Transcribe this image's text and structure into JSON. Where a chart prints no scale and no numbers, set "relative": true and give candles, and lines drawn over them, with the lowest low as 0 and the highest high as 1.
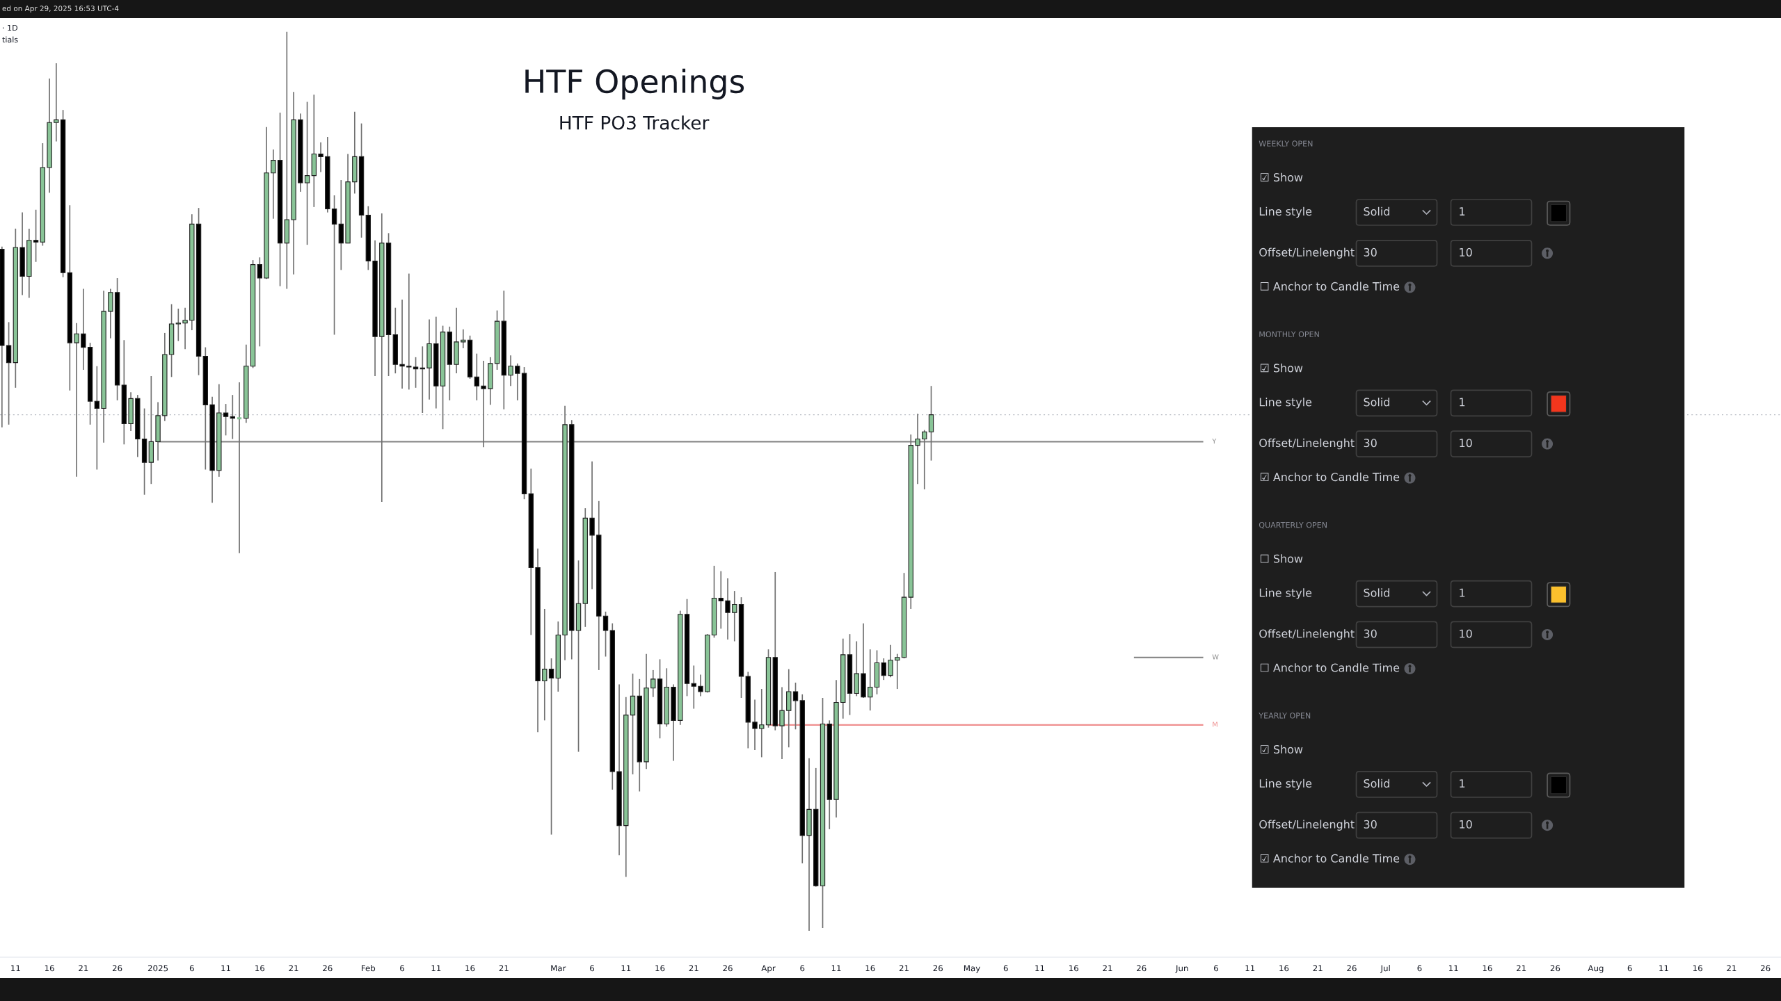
{
  "chart_data": [
    {
      "type": "candlestick",
      "title": "HTF Openings",
      "subtitle": "HTF PO3 Tracker",
      "relative": true,
      "tick_labels": "x",
      "grid": false,
      "annotations": [
        "ed on Apr 29, 2025 16:53 UTC-4",
        "· 1D",
        "tials"
      ],
      "xlim": [
        "2024-12-08T17:00",
        "2025-08-28T07:00"
      ],
      "xticks": [
        {
          "value": "2024-12-11",
          "label": "11"
        },
        {
          "value": "2024-12-16",
          "label": "16"
        },
        {
          "value": "2024-12-21",
          "label": "21"
        },
        {
          "value": "2024-12-26",
          "label": "26"
        },
        {
          "value": "2025-01-01",
          "label": "2025"
        },
        {
          "value": "2025-01-06",
          "label": "6"
        },
        {
          "value": "2025-01-11",
          "label": "11"
        },
        {
          "value": "2025-01-16",
          "label": "16"
        },
        {
          "value": "2025-01-21",
          "label": "21"
        },
        {
          "value": "2025-01-26",
          "label": "26"
        },
        {
          "value": "2025-02-01",
          "label": "Feb"
        },
        {
          "value": "2025-02-06",
          "label": "6"
        },
        {
          "value": "2025-02-11",
          "label": "11"
        },
        {
          "value": "2025-02-16",
          "label": "16"
        },
        {
          "value": "2025-02-21",
          "label": "21"
        },
        {
          "value": "2025-03-01",
          "label": "Mar"
        },
        {
          "value": "2025-03-06",
          "label": "6"
        },
        {
          "value": "2025-03-11",
          "label": "11"
        },
        {
          "value": "2025-03-16",
          "label": "16"
        },
        {
          "value": "2025-03-21",
          "label": "21"
        },
        {
          "value": "2025-03-26",
          "label": "26"
        },
        {
          "value": "2025-04-01",
          "label": "Apr"
        },
        {
          "value": "2025-04-06",
          "label": "6"
        },
        {
          "value": "2025-04-11",
          "label": "11"
        },
        {
          "value": "2025-04-16",
          "label": "16"
        },
        {
          "value": "2025-04-21",
          "label": "21"
        },
        {
          "value": "2025-04-26",
          "label": "26"
        },
        {
          "value": "2025-05-01",
          "label": "May"
        },
        {
          "value": "2025-05-06",
          "label": "6"
        },
        {
          "value": "2025-05-11",
          "label": "11"
        },
        {
          "value": "2025-05-16",
          "label": "16"
        },
        {
          "value": "2025-05-21",
          "label": "21"
        },
        {
          "value": "2025-05-26",
          "label": "26"
        },
        {
          "value": "2025-06-01",
          "label": "Jun"
        },
        {
          "value": "2025-06-06",
          "label": "6"
        },
        {
          "value": "2025-06-11",
          "label": "11"
        },
        {
          "value": "2025-06-16",
          "label": "16"
        },
        {
          "value": "2025-06-21",
          "label": "21"
        },
        {
          "value": "2025-06-26",
          "label": "26"
        },
        {
          "value": "2025-07-01",
          "label": "Jul"
        },
        {
          "value": "2025-07-06",
          "label": "6"
        },
        {
          "value": "2025-07-11",
          "label": "11"
        },
        {
          "value": "2025-07-16",
          "label": "16"
        },
        {
          "value": "2025-07-21",
          "label": "21"
        },
        {
          "value": "2025-07-26",
          "label": "26"
        },
        {
          "value": "2025-08-01",
          "label": "Aug"
        },
        {
          "value": "2025-08-06",
          "label": "6"
        },
        {
          "value": "2025-08-11",
          "label": "11"
        },
        {
          "value": "2025-08-16",
          "label": "16"
        },
        {
          "value": "2025-08-21",
          "label": "21"
        },
        {
          "value": "2025-08-26",
          "label": "26"
        }
      ],
      "x": [
        "2024-12-09",
        "2024-12-10",
        "2024-12-11",
        "2024-12-12",
        "2024-12-13",
        "2024-12-14",
        "2024-12-15",
        "2024-12-16",
        "2024-12-17",
        "2024-12-18",
        "2024-12-19",
        "2024-12-20",
        "2024-12-21",
        "2024-12-22",
        "2024-12-23",
        "2024-12-24",
        "2024-12-25",
        "2024-12-26",
        "2024-12-27",
        "2024-12-28",
        "2024-12-29",
        "2024-12-30",
        "2024-12-31",
        "2025-01-01",
        "2025-01-02",
        "2025-01-03",
        "2025-01-04",
        "2025-01-05",
        "2025-01-06",
        "2025-01-07",
        "2025-01-08",
        "2025-01-09",
        "2025-01-10",
        "2025-01-11",
        "2025-01-12",
        "2025-01-13",
        "2025-01-14",
        "2025-01-15",
        "2025-01-16",
        "2025-01-17",
        "2025-01-18",
        "2025-01-19",
        "2025-01-20",
        "2025-01-21",
        "2025-01-22",
        "2025-01-23",
        "2025-01-24",
        "2025-01-25",
        "2025-01-26",
        "2025-01-27",
        "2025-01-28",
        "2025-01-29",
        "2025-01-30",
        "2025-01-31",
        "2025-02-01",
        "2025-02-02",
        "2025-02-03",
        "2025-02-04",
        "2025-02-05",
        "2025-02-06",
        "2025-02-07",
        "2025-02-08",
        "2025-02-09",
        "2025-02-10",
        "2025-02-11",
        "2025-02-12",
        "2025-02-13",
        "2025-02-14",
        "2025-02-15",
        "2025-02-16",
        "2025-02-17",
        "2025-02-18",
        "2025-02-19",
        "2025-02-20",
        "2025-02-21",
        "2025-02-22",
        "2025-02-23",
        "2025-02-24",
        "2025-02-25",
        "2025-02-26",
        "2025-02-27",
        "2025-02-28",
        "2025-03-01",
        "2025-03-02",
        "2025-03-03",
        "2025-03-04",
        "2025-03-05",
        "2025-03-06",
        "2025-03-07",
        "2025-03-08",
        "2025-03-09",
        "2025-03-10",
        "2025-03-11",
        "2025-03-12",
        "2025-03-13",
        "2025-03-14",
        "2025-03-15",
        "2025-03-16",
        "2025-03-17",
        "2025-03-18",
        "2025-03-19",
        "2025-03-20",
        "2025-03-21",
        "2025-03-22",
        "2025-03-23",
        "2025-03-24",
        "2025-03-25",
        "2025-03-26",
        "2025-03-27",
        "2025-03-28",
        "2025-03-29",
        "2025-03-30",
        "2025-03-31",
        "2025-04-01",
        "2025-04-02",
        "2025-04-03",
        "2025-04-04",
        "2025-04-05",
        "2025-04-06",
        "2025-04-07",
        "2025-04-08",
        "2025-04-09",
        "2025-04-10",
        "2025-04-11",
        "2025-04-12",
        "2025-04-13",
        "2025-04-14",
        "2025-04-15",
        "2025-04-16",
        "2025-04-17",
        "2025-04-18",
        "2025-04-19",
        "2025-04-20",
        "2025-04-21",
        "2025-04-22",
        "2025-04-23",
        "2025-04-24",
        "2025-04-25"
      ],
      "ohlc": [
        [
          0.758,
          0.761,
          0.56,
          0.651
        ],
        [
          0.651,
          0.677,
          0.563,
          0.632
        ],
        [
          0.632,
          0.781,
          0.604,
          0.76
        ],
        [
          0.76,
          0.799,
          0.707,
          0.728
        ],
        [
          0.728,
          0.781,
          0.704,
          0.768
        ],
        [
          0.768,
          0.802,
          0.744,
          0.766
        ],
        [
          0.766,
          0.876,
          0.762,
          0.849
        ],
        [
          0.849,
          0.948,
          0.821,
          0.899
        ],
        [
          0.899,
          0.965,
          0.878,
          0.902
        ],
        [
          0.902,
          0.913,
          0.727,
          0.732
        ],
        [
          0.732,
          0.807,
          0.601,
          0.654
        ],
        [
          0.654,
          0.676,
          0.505,
          0.664
        ],
        [
          0.664,
          0.714,
          0.624,
          0.649
        ],
        [
          0.649,
          0.654,
          0.563,
          0.589
        ],
        [
          0.589,
          0.628,
          0.513,
          0.581
        ],
        [
          0.581,
          0.712,
          0.543,
          0.689
        ],
        [
          0.689,
          0.714,
          0.659,
          0.71
        ],
        [
          0.71,
          0.726,
          0.59,
          0.607
        ],
        [
          0.607,
          0.657,
          0.541,
          0.564
        ],
        [
          0.564,
          0.599,
          0.556,
          0.592
        ],
        [
          0.592,
          0.596,
          0.527,
          0.547
        ],
        [
          0.547,
          0.581,
          0.485,
          0.521
        ],
        [
          0.521,
          0.617,
          0.497,
          0.544
        ],
        [
          0.544,
          0.588,
          0.523,
          0.573
        ],
        [
          0.573,
          0.665,
          0.567,
          0.641
        ],
        [
          0.641,
          0.697,
          0.616,
          0.675
        ],
        [
          0.675,
          0.692,
          0.656,
          0.676
        ],
        [
          0.676,
          0.693,
          0.647,
          0.679
        ],
        [
          0.679,
          0.797,
          0.668,
          0.786
        ],
        [
          0.786,
          0.804,
          0.618,
          0.639
        ],
        [
          0.639,
          0.649,
          0.513,
          0.585
        ],
        [
          0.585,
          0.594,
          0.476,
          0.512
        ],
        [
          0.512,
          0.608,
          0.505,
          0.576
        ],
        [
          0.576,
          0.586,
          0.551,
          0.572
        ],
        [
          0.572,
          0.596,
          0.547,
          0.57
        ],
        [
          0.57,
          0.61,
          0.42,
          0.57
        ],
        [
          0.57,
          0.652,
          0.565,
          0.628
        ],
        [
          0.628,
          0.746,
          0.626,
          0.741
        ],
        [
          0.741,
          0.749,
          0.65,
          0.726
        ],
        [
          0.726,
          0.894,
          0.725,
          0.843
        ],
        [
          0.843,
          0.869,
          0.792,
          0.857
        ],
        [
          0.857,
          0.91,
          0.717,
          0.765
        ],
        [
          0.765,
          1.0,
          0.714,
          0.791
        ],
        [
          0.791,
          0.933,
          0.73,
          0.902
        ],
        [
          0.902,
          0.909,
          0.822,
          0.832
        ],
        [
          0.832,
          0.922,
          0.763,
          0.84
        ],
        [
          0.84,
          0.93,
          0.805,
          0.864
        ],
        [
          0.864,
          0.877,
          0.844,
          0.861
        ],
        [
          0.861,
          0.883,
          0.799,
          0.803
        ],
        [
          0.803,
          0.818,
          0.663,
          0.786
        ],
        [
          0.786,
          0.835,
          0.735,
          0.765
        ],
        [
          0.765,
          0.864,
          0.765,
          0.833
        ],
        [
          0.833,
          0.911,
          0.82,
          0.861
        ],
        [
          0.861,
          0.898,
          0.771,
          0.796
        ],
        [
          0.796,
          0.806,
          0.735,
          0.745
        ],
        [
          0.745,
          0.768,
          0.617,
          0.661
        ],
        [
          0.661,
          0.798,
          0.477,
          0.765
        ],
        [
          0.765,
          0.776,
          0.617,
          0.663
        ],
        [
          0.663,
          0.693,
          0.62,
          0.63
        ],
        [
          0.63,
          0.702,
          0.603,
          0.628
        ],
        [
          0.628,
          0.731,
          0.602,
          0.627
        ],
        [
          0.627,
          0.638,
          0.604,
          0.625
        ],
        [
          0.625,
          0.65,
          0.576,
          0.626
        ],
        [
          0.626,
          0.68,
          0.591,
          0.653
        ],
        [
          0.653,
          0.683,
          0.581,
          0.606
        ],
        [
          0.606,
          0.673,
          0.558,
          0.666
        ],
        [
          0.666,
          0.672,
          0.59,
          0.63
        ],
        [
          0.63,
          0.693,
          0.62,
          0.655
        ],
        [
          0.655,
          0.669,
          0.648,
          0.657
        ],
        [
          0.657,
          0.662,
          0.614,
          0.616
        ],
        [
          0.616,
          0.642,
          0.59,
          0.606
        ],
        [
          0.606,
          0.634,
          0.538,
          0.603
        ],
        [
          0.603,
          0.638,
          0.585,
          0.631
        ],
        [
          0.631,
          0.69,
          0.624,
          0.678
        ],
        [
          0.678,
          0.712,
          0.58,
          0.618
        ],
        [
          0.618,
          0.64,
          0.606,
          0.628
        ],
        [
          0.628,
          0.631,
          0.59,
          0.62
        ],
        [
          0.62,
          0.627,
          0.48,
          0.486
        ],
        [
          0.486,
          0.514,
          0.329,
          0.404
        ],
        [
          0.404,
          0.425,
          0.221,
          0.278
        ],
        [
          0.278,
          0.358,
          0.234,
          0.291
        ],
        [
          0.291,
          0.303,
          0.107,
          0.281
        ],
        [
          0.281,
          0.344,
          0.266,
          0.329
        ],
        [
          0.329,
          0.584,
          0.301,
          0.563
        ],
        [
          0.563,
          0.568,
          0.302,
          0.334
        ],
        [
          0.334,
          0.412,
          0.199,
          0.364
        ],
        [
          0.364,
          0.47,
          0.338,
          0.459
        ],
        [
          0.459,
          0.522,
          0.38,
          0.44
        ],
        [
          0.44,
          0.478,
          0.29,
          0.35
        ],
        [
          0.35,
          0.355,
          0.305,
          0.334
        ],
        [
          0.334,
          0.342,
          0.157,
          0.177
        ],
        [
          0.177,
          0.274,
          0.084,
          0.117
        ],
        [
          0.117,
          0.26,
          0.06,
          0.24
        ],
        [
          0.24,
          0.286,
          0.174,
          0.261
        ],
        [
          0.261,
          0.28,
          0.155,
          0.188
        ],
        [
          0.188,
          0.308,
          0.18,
          0.27
        ],
        [
          0.27,
          0.29,
          0.26,
          0.28
        ],
        [
          0.28,
          0.302,
          0.214,
          0.23
        ],
        [
          0.23,
          0.292,
          0.227,
          0.271
        ],
        [
          0.271,
          0.274,
          0.189,
          0.234
        ],
        [
          0.234,
          0.356,
          0.229,
          0.352
        ],
        [
          0.352,
          0.369,
          0.261,
          0.275
        ],
        [
          0.275,
          0.295,
          0.247,
          0.272
        ],
        [
          0.272,
          0.285,
          0.261,
          0.266
        ],
        [
          0.266,
          0.33,
          0.265,
          0.329
        ],
        [
          0.329,
          0.406,
          0.326,
          0.37
        ],
        [
          0.37,
          0.4,
          0.336,
          0.367
        ],
        [
          0.367,
          0.392,
          0.324,
          0.354
        ],
        [
          0.354,
          0.378,
          0.322,
          0.363
        ],
        [
          0.363,
          0.371,
          0.259,
          0.283
        ],
        [
          0.283,
          0.288,
          0.203,
          0.232
        ],
        [
          0.232,
          0.257,
          0.201,
          0.225
        ],
        [
          0.225,
          0.269,
          0.193,
          0.229
        ],
        [
          0.229,
          0.313,
          0.226,
          0.304
        ],
        [
          0.304,
          0.399,
          0.223,
          0.228
        ],
        [
          0.228,
          0.271,
          0.191,
          0.245
        ],
        [
          0.245,
          0.291,
          0.204,
          0.266
        ],
        [
          0.266,
          0.276,
          0.224,
          0.256
        ],
        [
          0.256,
          0.263,
          0.075,
          0.106
        ],
        [
          0.106,
          0.192,
          0.0,
          0.135
        ],
        [
          0.135,
          0.181,
          0.049,
          0.05
        ],
        [
          0.05,
          0.259,
          0.003,
          0.23
        ],
        [
          0.23,
          0.234,
          0.113,
          0.146
        ],
        [
          0.146,
          0.279,
          0.126,
          0.254
        ],
        [
          0.254,
          0.325,
          0.236,
          0.307
        ],
        [
          0.307,
          0.33,
          0.24,
          0.264
        ],
        [
          0.264,
          0.322,
          0.261,
          0.286
        ],
        [
          0.286,
          0.342,
          0.259,
          0.26
        ],
        [
          0.26,
          0.313,
          0.245,
          0.271
        ],
        [
          0.271,
          0.312,
          0.263,
          0.298
        ],
        [
          0.298,
          0.303,
          0.279,
          0.284
        ],
        [
          0.284,
          0.318,
          0.282,
          0.301
        ],
        [
          0.301,
          0.308,
          0.269,
          0.304
        ],
        [
          0.304,
          0.398,
          0.303,
          0.371
        ],
        [
          0.371,
          0.552,
          0.358,
          0.54
        ],
        [
          0.54,
          0.575,
          0.497,
          0.547
        ],
        [
          0.547,
          0.557,
          0.491,
          0.555
        ],
        [
          0.555,
          0.606,
          0.523,
          0.574
        ]
      ],
      "colors": [
        "#000000",
        "#000000",
        "#89c497",
        "#000000",
        "#89c497",
        "#000000",
        "#89c497",
        "#89c497",
        "#89c497",
        "#000000",
        "#000000",
        "#89c497",
        "#000000",
        "#000000",
        "#000000",
        "#89c497",
        "#89c497",
        "#000000",
        "#000000",
        "#89c497",
        "#000000",
        "#000000",
        "#89c497",
        "#89c497",
        "#89c497",
        "#89c497",
        "#89c497",
        "#89c497",
        "#89c497",
        "#000000",
        "#000000",
        "#000000",
        "#89c497",
        "#000000",
        "#000000",
        "#89c497",
        "#89c497",
        "#89c497",
        "#000000",
        "#89c497",
        "#89c497",
        "#000000",
        "#89c497",
        "#89c497",
        "#000000",
        "#89c497",
        "#89c497",
        "#000000",
        "#000000",
        "#000000",
        "#000000",
        "#89c497",
        "#89c497",
        "#000000",
        "#000000",
        "#000000",
        "#89c497",
        "#000000",
        "#000000",
        "#000000",
        "#000000",
        "#000000",
        "#89c497",
        "#89c497",
        "#000000",
        "#89c497",
        "#000000",
        "#89c497",
        "#89c497",
        "#000000",
        "#000000",
        "#000000",
        "#89c497",
        "#89c497",
        "#000000",
        "#89c497",
        "#000000",
        "#000000",
        "#000000",
        "#000000",
        "#89c497",
        "#000000",
        "#89c497",
        "#89c497",
        "#000000",
        "#89c497",
        "#89c497",
        "#000000",
        "#000000",
        "#000000",
        "#000000",
        "#000000",
        "#89c497",
        "#89c497",
        "#000000",
        "#89c497",
        "#89c497",
        "#000000",
        "#89c497",
        "#000000",
        "#89c497",
        "#000000",
        "#000000",
        "#000000",
        "#89c497",
        "#89c497",
        "#000000",
        "#000000",
        "#89c497",
        "#000000",
        "#000000",
        "#000000",
        "#89c497",
        "#89c497",
        "#000000",
        "#89c497",
        "#89c497",
        "#000000",
        "#000000",
        "#89c497",
        "#000000",
        "#89c497",
        "#000000",
        "#89c497",
        "#89c497",
        "#000000",
        "#89c497",
        "#000000",
        "#89c497",
        "#89c497",
        "#000000",
        "#89c497",
        "#89c497",
        "#89c497",
        "#89c497",
        "#89c497",
        "#89c497",
        "#89c497"
      ],
      "series": [
        {
          "type": "line",
          "name": "Y",
          "color": "#8a8a8a",
          "x": [
            "2025-01-01",
            "2025-06-04"
          ],
          "values": [
            0.544,
            0.544
          ]
        },
        {
          "type": "line",
          "name": "W",
          "color": "#8a8a8a",
          "x": [
            "2025-05-25",
            "2025-06-04"
          ],
          "values": [
            0.304,
            0.304
          ]
        },
        {
          "type": "line",
          "name": "M",
          "color": "#ef8f8f",
          "x": [
            "2025-04-01",
            "2025-06-04"
          ],
          "values": [
            0.229,
            0.229
          ]
        }
      ],
      "ref_lines": [
        {
          "axis": "y",
          "value": 0.574,
          "color": "#b8bbc3",
          "line_style": "dotted"
        }
      ]
    },
    {
      "type": "other",
      "colors": [
        "#000000",
        "#f2361d",
        "#fbc02d",
        "#000000"
      ],
      "annotations": [
        "WEEKLY OPEN",
        "☑ Show",
        "Line style",
        "Solid",
        "1",
        "Offset/Linelenght",
        "30",
        "10",
        "☐ Anchor to Candle Time",
        "MONTHLY OPEN",
        "☑ Show",
        "Line style",
        "Solid",
        "1",
        "Offset/Linelenght",
        "30",
        "10",
        "☑ Anchor to Candle Time",
        "QUARTERLY OPEN",
        "☐ Show",
        "Line style",
        "Solid",
        "1",
        "Offset/Linelenght",
        "30",
        "10",
        "☐ Anchor to Candle Time",
        "YEARLY OPEN",
        "☑ Show",
        "Line style",
        "Solid",
        "1",
        "Offset/Linelenght",
        "30",
        "10",
        "☑ Anchor to Candle Time"
      ]
    }
  ]
}
